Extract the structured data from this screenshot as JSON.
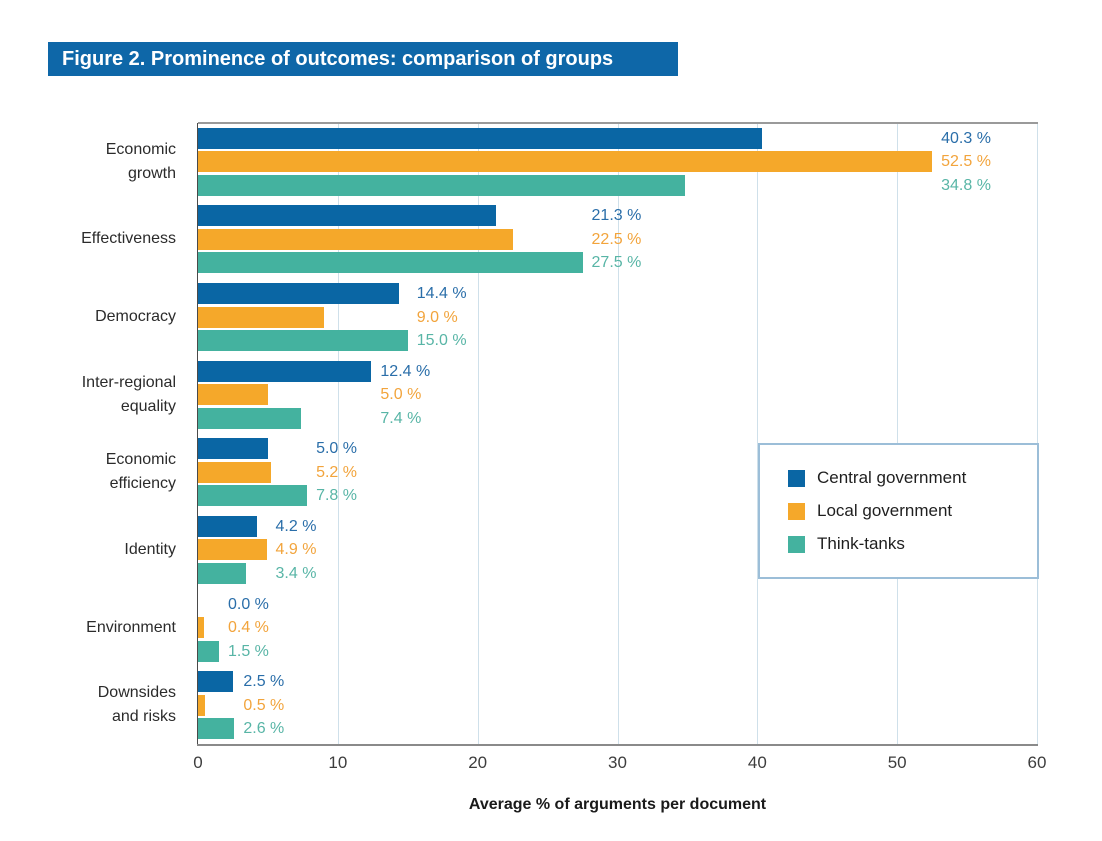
{
  "figure": {
    "title": "Figure 2. Prominence of outcomes: comparison of groups",
    "banner_color": "#0e67a8"
  },
  "chart_data": {
    "type": "bar",
    "orientation": "horizontal",
    "title": "Figure 2. Prominence of outcomes: comparison of groups",
    "xlabel": "Average % of arguments per document",
    "ylabel": "",
    "xlim": [
      0,
      60
    ],
    "x_ticks": [
      0,
      10,
      20,
      30,
      40,
      50,
      60
    ],
    "grid": "vertical",
    "legend_position": "right-middle",
    "value_suffix": " %",
    "categories": [
      "Economic growth",
      "Effectiveness",
      "Democracy",
      "Inter-regional equality",
      "Economic efficiency",
      "Identity",
      "Environment",
      "Downsides and risks"
    ],
    "category_lines": [
      [
        "Economic",
        "growth"
      ],
      [
        "Effectiveness"
      ],
      [
        "Democracy"
      ],
      [
        "Inter-regional",
        "equality"
      ],
      [
        "Economic",
        "efficiency"
      ],
      [
        "Identity"
      ],
      [
        "Environment"
      ],
      [
        "Downsides",
        "and risks"
      ]
    ],
    "series": [
      {
        "name": "Central government",
        "color": "#0a66a4",
        "label_color": "#2a6ea9",
        "values": [
          40.3,
          21.3,
          14.4,
          12.4,
          5.0,
          4.2,
          0.0,
          2.5
        ]
      },
      {
        "name": "Local government",
        "color": "#f5a82a",
        "label_color": "#f2a43c",
        "values": [
          52.5,
          22.5,
          9.0,
          5.0,
          5.2,
          4.9,
          0.4,
          0.5
        ]
      },
      {
        "name": "Think-tanks",
        "color": "#44b29f",
        "label_color": "#58b5a6",
        "values": [
          34.8,
          27.5,
          15.0,
          7.4,
          7.8,
          3.4,
          1.5,
          2.6
        ]
      }
    ]
  }
}
